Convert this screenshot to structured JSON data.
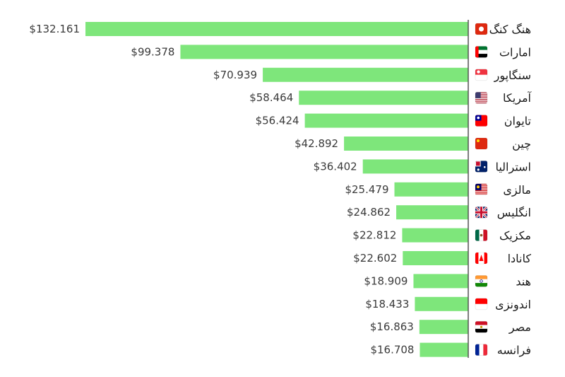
{
  "chart_data": {
    "type": "bar",
    "orientation": "horizontal",
    "categories": [
      "هنگ کنگ",
      "امارات",
      "سنگاپور",
      "آمریکا",
      "تایوان",
      "چین",
      "استرالیا",
      "مالزی",
      "انگلیس",
      "مکزیک",
      "کانادا",
      "هند",
      "اندونزی",
      "مصر",
      "فرانسه"
    ],
    "value_labels": [
      "$132.161",
      "$99.378",
      "$70.939",
      "$58.464",
      "$56.424",
      "$42.892",
      "$36.402",
      "$25.479",
      "$24.862",
      "$22.812",
      "$22.602",
      "$18.909",
      "$18.433",
      "$16.863",
      "$16.708"
    ],
    "values": [
      132161,
      99378,
      70939,
      58464,
      56424,
      42892,
      36402,
      25479,
      24862,
      22812,
      22602,
      18909,
      18433,
      16863,
      16708
    ],
    "flags": [
      "hong-kong-flag-icon",
      "uae-flag-icon",
      "singapore-flag-icon",
      "usa-flag-icon",
      "taiwan-flag-icon",
      "china-flag-icon",
      "australia-flag-icon",
      "malaysia-flag-icon",
      "uk-flag-icon",
      "mexico-flag-icon",
      "canada-flag-icon",
      "india-flag-icon",
      "indonesia-flag-icon",
      "egypt-flag-icon",
      "france-flag-icon"
    ],
    "bar_color": "#7ee67b",
    "axis_color": "#555555",
    "grid": false,
    "legend": "none",
    "title": "",
    "xlabel": "",
    "ylabel": ""
  }
}
